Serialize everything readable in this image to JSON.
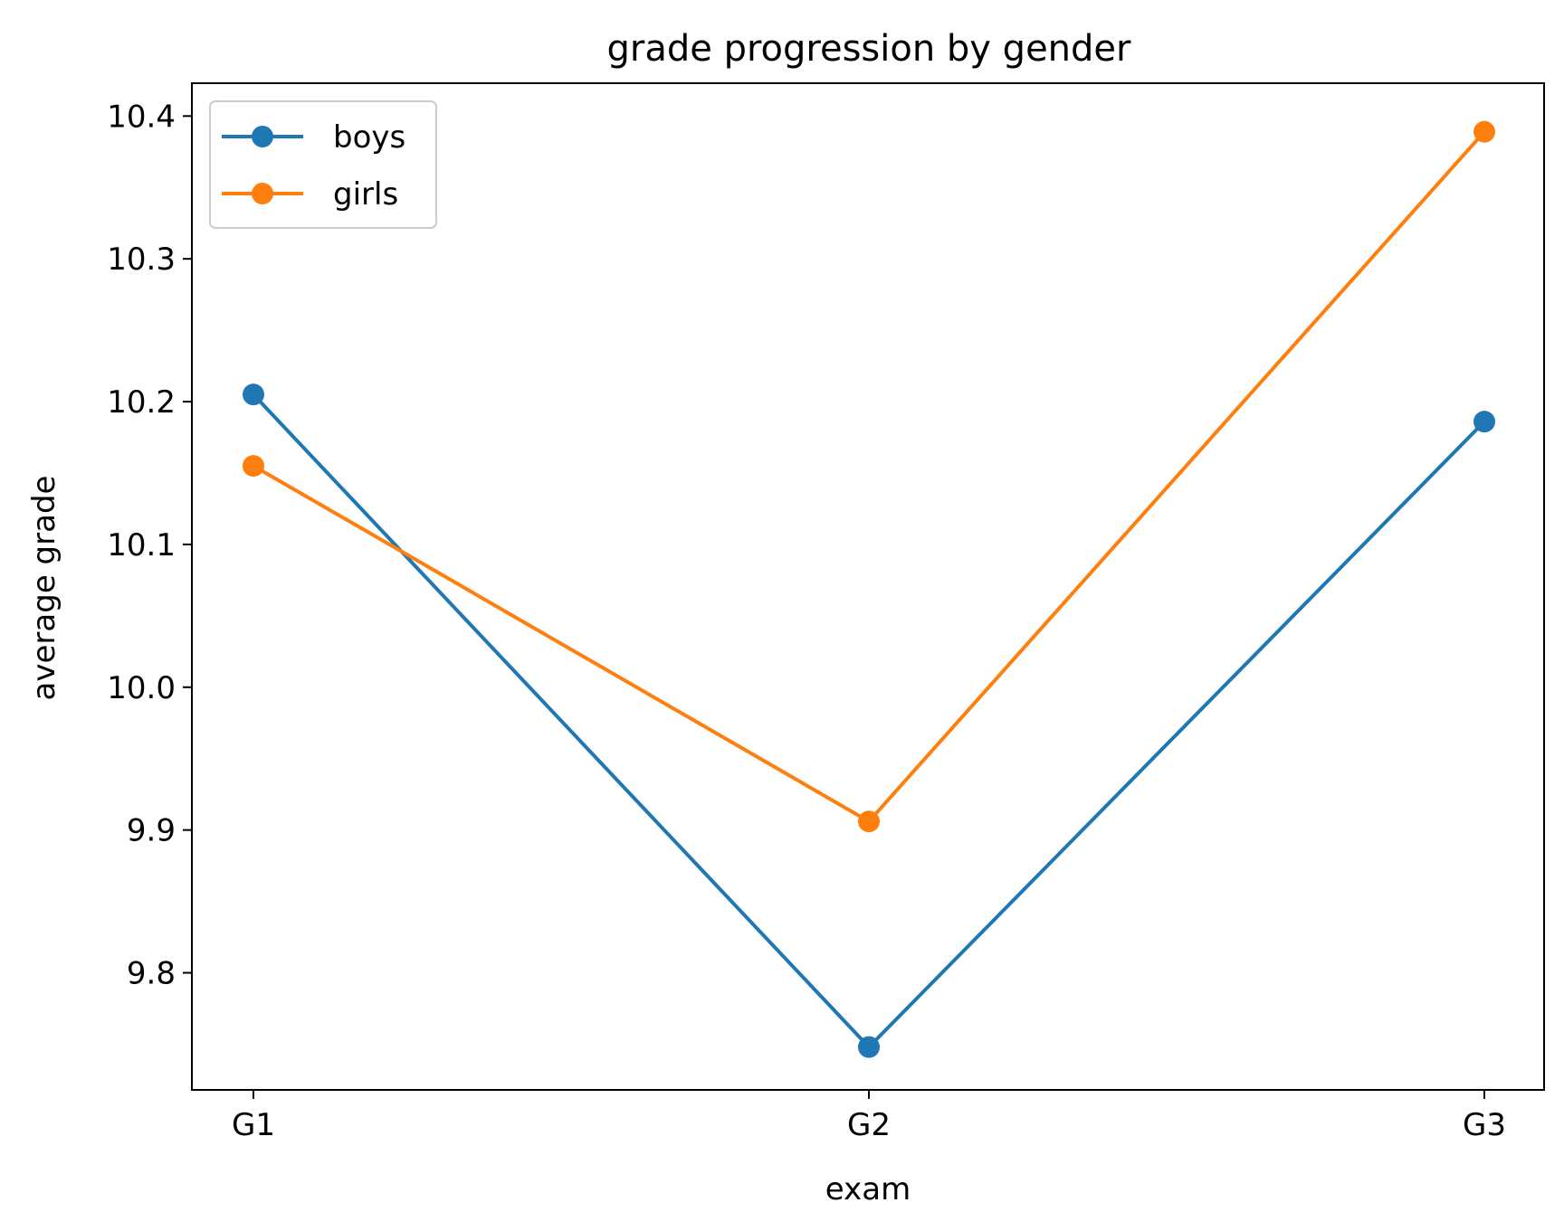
{
  "chart_data": {
    "type": "line",
    "title": "grade progression by gender",
    "xlabel": "exam",
    "ylabel": "average grade",
    "categories": [
      "G1",
      "G2",
      "G3"
    ],
    "series": [
      {
        "name": "boys",
        "color": "#1f77b4",
        "values": [
          10.205,
          9.748,
          10.186
        ]
      },
      {
        "name": "girls",
        "color": "#ff7f0e",
        "values": [
          10.155,
          9.906,
          10.389
        ]
      }
    ],
    "ylim": [
      9.718,
      10.423
    ],
    "yticks": [
      9.8,
      9.9,
      10.0,
      10.1,
      10.2,
      10.3,
      10.4
    ],
    "ytick_labels": [
      "9.8",
      "9.9",
      "10.0",
      "10.1",
      "10.2",
      "10.3",
      "10.4"
    ],
    "grid": false,
    "legend_position": "top-left",
    "marker": "circle"
  }
}
